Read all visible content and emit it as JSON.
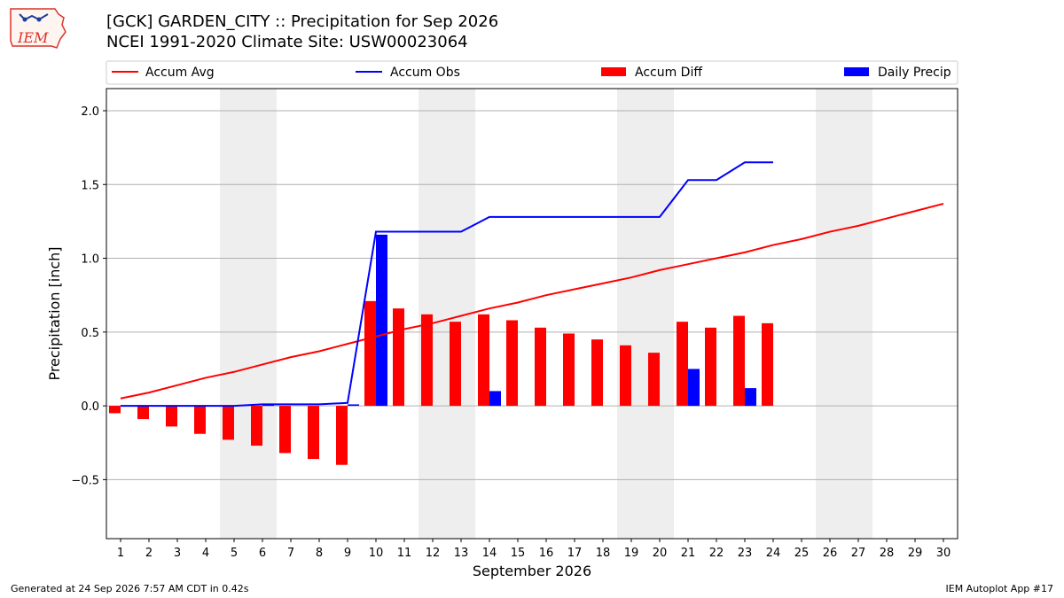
{
  "header": {
    "title_line1": "[GCK] GARDEN_CITY :: Precipitation for Sep 2026",
    "title_line2": "NCEI 1991-2020 Climate Site: USW00023064",
    "logo_text": "IEM"
  },
  "footer": {
    "generated": "Generated at 24 Sep 2026 7:57 AM CDT in 0.42s",
    "app": "IEM Autoplot App #17"
  },
  "colors": {
    "avg": "#ff0000",
    "obs": "#0000ff",
    "diff": "#ff0000",
    "daily": "#0000ff",
    "weekend": "#eeeeee",
    "grid": "#b0b0b0"
  },
  "chart_data": {
    "type": "bar",
    "xlabel": "September 2026",
    "ylabel": "Precipitation [inch]",
    "ylim": [
      -0.9,
      2.15
    ],
    "yticks": [
      -0.5,
      0.0,
      0.5,
      1.0,
      1.5,
      2.0
    ],
    "ytick_labels": [
      "−0.5",
      "0.0",
      "0.5",
      "1.0",
      "1.5",
      "2.0"
    ],
    "days": [
      1,
      2,
      3,
      4,
      5,
      6,
      7,
      8,
      9,
      10,
      11,
      12,
      13,
      14,
      15,
      16,
      17,
      18,
      19,
      20,
      21,
      22,
      23,
      24,
      25,
      26,
      27,
      28,
      29,
      30
    ],
    "weekend_days": [
      5,
      6,
      12,
      13,
      19,
      20,
      26,
      27
    ],
    "grid": "y",
    "legend_position": "top",
    "legend": [
      "Accum Avg",
      "Accum Obs",
      "Accum Diff",
      "Daily Precip"
    ],
    "series": [
      {
        "name": "Accum Avg",
        "kind": "line",
        "values": [
          0.05,
          0.09,
          0.14,
          0.19,
          0.23,
          0.28,
          0.33,
          0.37,
          0.42,
          0.47,
          0.52,
          0.56,
          0.61,
          0.66,
          0.7,
          0.75,
          0.79,
          0.83,
          0.87,
          0.92,
          0.96,
          1.0,
          1.04,
          1.09,
          1.13,
          1.18,
          1.22,
          1.27,
          1.32,
          1.37
        ]
      },
      {
        "name": "Accum Obs",
        "kind": "line",
        "values": [
          0.0,
          0.0,
          0.0,
          0.0,
          0.0,
          0.01,
          0.01,
          0.01,
          0.02,
          1.18,
          1.18,
          1.18,
          1.18,
          1.28,
          1.28,
          1.28,
          1.28,
          1.28,
          1.28,
          1.28,
          1.53,
          1.53,
          1.65,
          1.65
        ]
      },
      {
        "name": "Accum Diff",
        "kind": "bar",
        "values": [
          -0.05,
          -0.09,
          -0.14,
          -0.19,
          -0.23,
          -0.27,
          -0.32,
          -0.36,
          -0.4,
          0.71,
          0.66,
          0.62,
          0.57,
          0.62,
          0.58,
          0.53,
          0.49,
          0.45,
          0.41,
          0.36,
          0.57,
          0.53,
          0.61,
          0.56
        ]
      },
      {
        "name": "Daily Precip",
        "kind": "bar",
        "values": [
          0.0,
          0.0,
          0.0,
          0.0,
          0.0,
          0.01,
          0.0,
          0.0,
          0.01,
          1.16,
          0.0,
          0.0,
          0.0,
          0.1,
          0.0,
          0.0,
          0.0,
          0.0,
          0.0,
          0.0,
          0.25,
          0.0,
          0.12,
          0.0
        ]
      }
    ]
  }
}
